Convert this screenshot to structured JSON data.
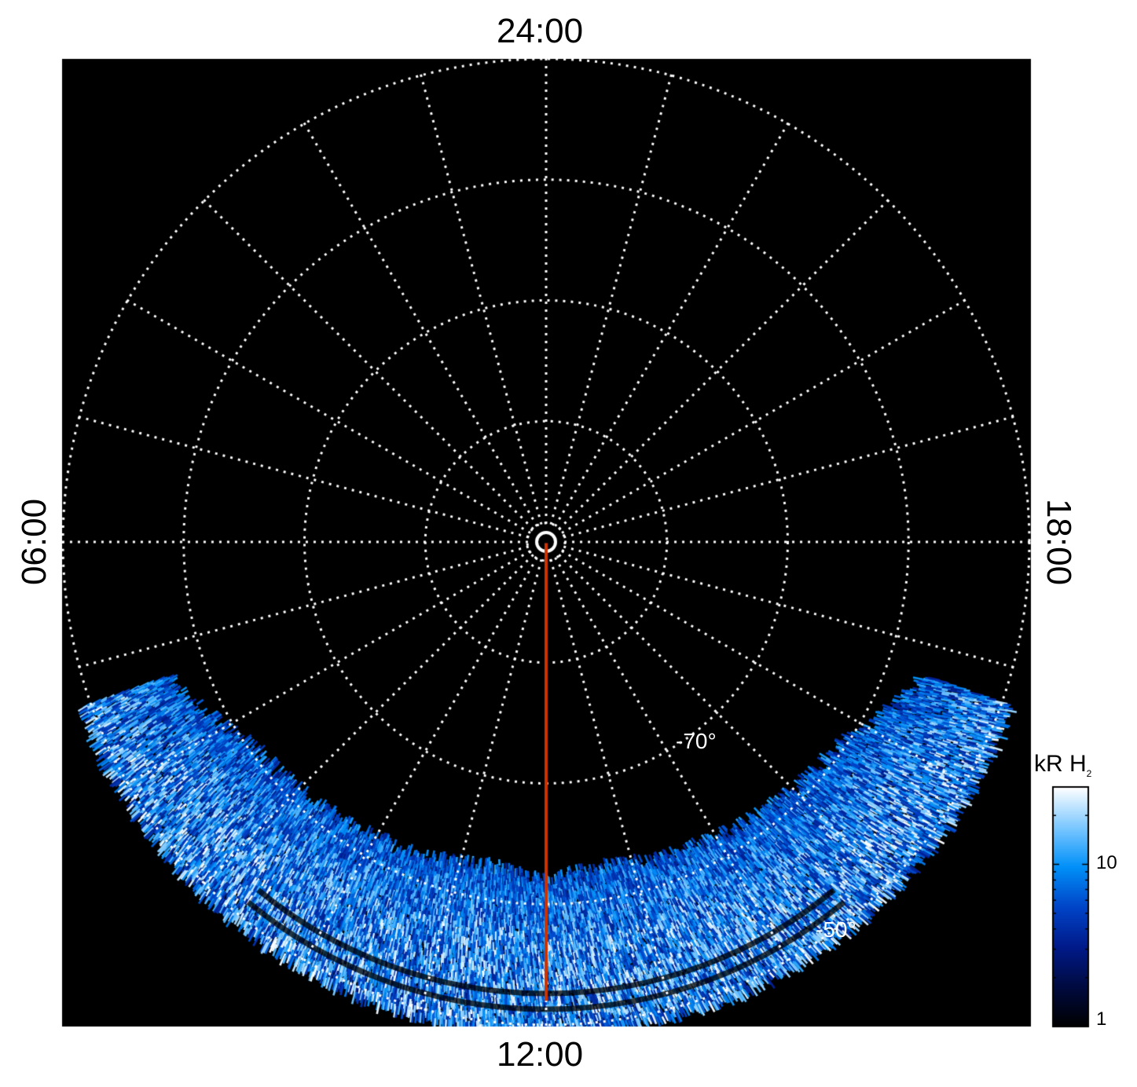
{
  "chart_data": {
    "type": "polar",
    "projection": "polar-south",
    "background": "#000000",
    "grid": true,
    "grid_color": "#ffffff",
    "grid_style": "dotted",
    "local_time_labels": {
      "top": "24:00",
      "bottom": "12:00",
      "left": "06:00",
      "right": "18:00"
    },
    "meridian_step_hours": 1,
    "latitude_circles": [
      -80,
      -70,
      -60,
      -50
    ],
    "latitude_labels": [
      {
        "text": "-70°",
        "lat": -70,
        "local_time": 14.5
      },
      {
        "text": "-50°",
        "lat": -50,
        "local_time": 14.5
      }
    ],
    "latitude_range": [
      -90,
      -50
    ],
    "highlight_line": {
      "local_time": 12,
      "color": "#cc3300",
      "from_lat": -90,
      "to_lat": -50
    },
    "emission_region": {
      "local_time_range": [
        7.3,
        16.7
      ],
      "lat_range": [
        -64,
        -50
      ]
    },
    "colorbar": {
      "label": "kR H",
      "label_sub": "2",
      "scale": "log",
      "range": [
        1,
        30
      ],
      "ticks": [
        {
          "value": 1,
          "label": "1"
        },
        {
          "value": 10,
          "label": "10"
        }
      ],
      "colormap": [
        "#000000",
        "#000a40",
        "#001a8a",
        "#0044c8",
        "#0090f8",
        "#7cc8ff",
        "#ffffff"
      ]
    }
  }
}
